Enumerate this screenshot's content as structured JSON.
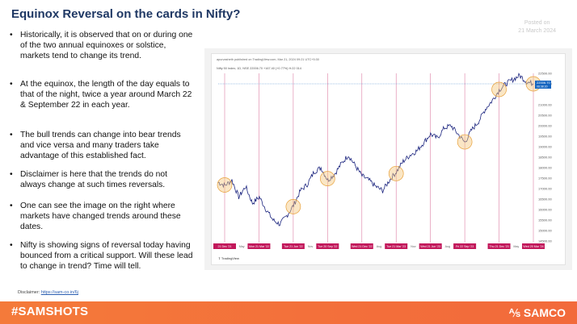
{
  "title": "Equinox Reversal on the cards in Nifty?",
  "posted": {
    "line1": "Posted on",
    "line2": "21 March 2024"
  },
  "bullets": [
    "Historically, it is observed that on or during one of the two annual equinoxes or solstice, markets tend to change its trend.",
    "At the equinox, the length of the day equals to that of the night, twice a year around March 22 & September 22 in each year.",
    "The bull trends can change into bear trends and vice versa and many traders take advantage of this established fact.",
    "Disclaimer is here that the trends do not always change at such times reversals.",
    "One can see the image on the right where markets have changed trends around these dates.",
    "Nifty is showing signs of reversal today having bounced from a critical support. Will these lead to change in trend? Time will tell."
  ],
  "bullet_marker": "•",
  "disclaimer": {
    "label": "Disclaimer:",
    "link": "https://sam-co.in/6j"
  },
  "chart_header": "apurvasheth published on TradingView.com, Mar 21, 2024 09:21 UTC+5:30",
  "chart_symbol": "Nifty 50 Index, 1D, NSE  22006.70  +167.40 (+0.77%)  H:22 014",
  "chart_logo": "TradingView",
  "footer": {
    "hashtag": "#SAMSHOTS",
    "brand": "SAMCO",
    "brand_mark": "⅍"
  },
  "colors": {
    "title": "#1f3864",
    "footer": "#f47a3a",
    "line": "#1a237e",
    "marker": "#c2185b",
    "circle": "#f5c77e"
  },
  "chart_data": {
    "type": "line",
    "title": "",
    "series": [
      {
        "values": [
          17300,
          17150,
          17400,
          16600,
          17100,
          16300,
          16600,
          16000,
          15500,
          15300,
          15700,
          16200,
          16900,
          17200,
          17800,
          18000,
          17400,
          17700,
          18200,
          18600,
          18100,
          17600,
          17400,
          17100,
          16900,
          17400,
          17800,
          18300,
          18600,
          18800,
          19200,
          19600,
          19400,
          19900,
          20000,
          19600,
          19200,
          19800,
          20200,
          20800,
          21200,
          21700,
          22000,
          22200,
          22400,
          22100,
          22000
        ]
      }
    ],
    "y_axis": [
      "22500.00",
      "22000.00",
      "21000.00",
      "20500.00",
      "20000.00",
      "19500.00",
      "19000.00",
      "18500.00",
      "18000.00",
      "17500.00",
      "17000.00",
      "16500.00",
      "16000.00",
      "15500.00",
      "15000.00",
      "14500.00"
    ],
    "ylim": [
      14500,
      22500
    ],
    "last_price": "22006.70",
    "last_price_sub": "06:38:20",
    "date_markers": [
      "21 Dec '21",
      "Mon 21 Mar '22",
      "Tue 21 Jun '22",
      "Tue 20 Sep '22",
      "Wed 21 Dec '22",
      "Tue 21 Mar '23",
      "Wed 21 Jun '23",
      "Fri 22 Sep '23",
      "Thu 21 Dec '23",
      "Wed 20 Mar '24"
    ],
    "month_labels": [
      "May",
      "Nov",
      "Aug",
      "Nov",
      "Aug",
      "May"
    ]
  }
}
